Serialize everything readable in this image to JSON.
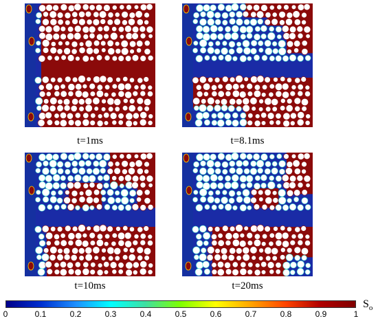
{
  "panels": [
    {
      "caption": "t=1ms"
    },
    {
      "caption": "t=8.1ms"
    },
    {
      "caption": "t=10ms"
    },
    {
      "caption": "t=20ms"
    }
  ],
  "colorbar": {
    "label_main": "S",
    "label_sub": "o",
    "ticks": [
      "0",
      "0.1",
      "0.2",
      "0.3",
      "0.4",
      "0.5",
      "0.6",
      "0.7",
      "0.8",
      "0.9",
      "1"
    ],
    "min": 0,
    "max": 1,
    "colors": [
      "#00008b",
      "#0030d0",
      "#1e90ff",
      "#00ffff",
      "#40e0a0",
      "#7fff00",
      "#ffff00",
      "#ffa500",
      "#ff4500",
      "#b00000",
      "#800000"
    ]
  },
  "field_colors": {
    "oil": "#8b0a0a",
    "water": "#1a2ba6",
    "interface": "#40e0d0",
    "grain": "#ffffff"
  }
}
